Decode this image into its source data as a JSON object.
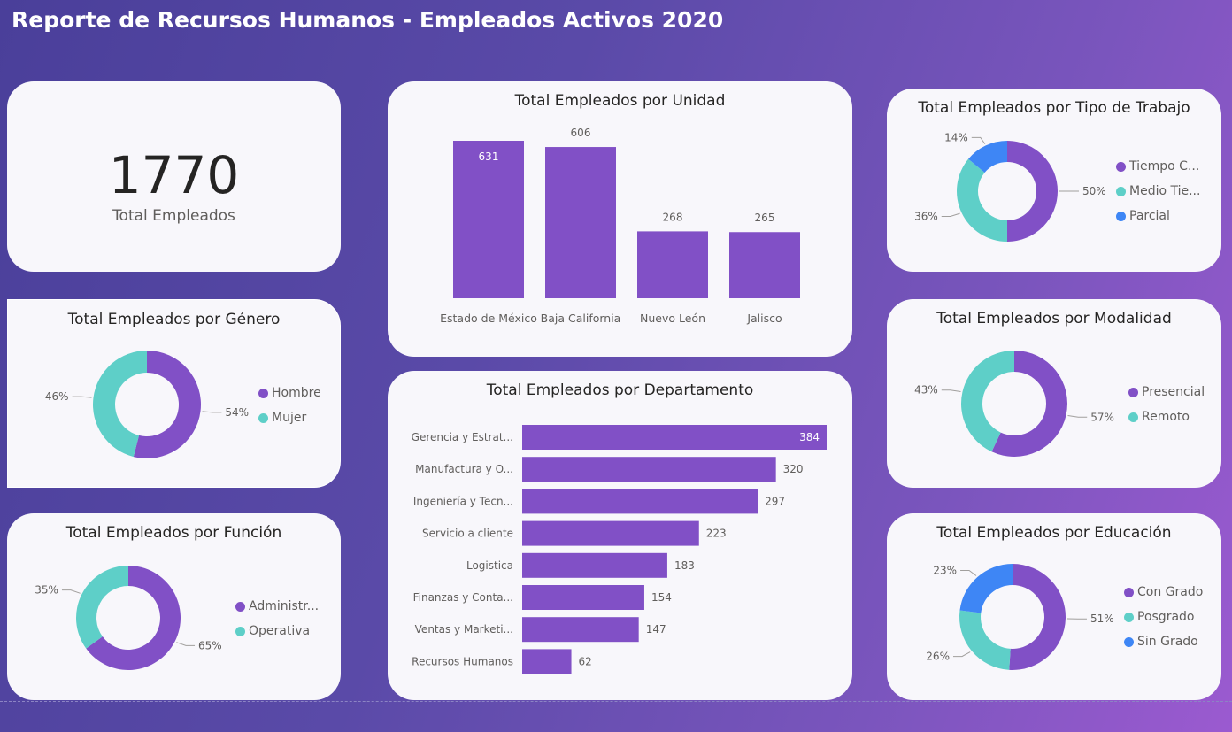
{
  "title": "Reporte de Recursos Humanos - Empleados Activos 2020",
  "colors": {
    "purple": "#8150c6",
    "teal": "#5ecfc8",
    "blue": "#3e86f5"
  },
  "kpi": {
    "value": "1770",
    "label": "Total Empleados"
  },
  "charts": {
    "unidad": {
      "title": "Total Empleados por Unidad"
    },
    "departamento": {
      "title": "Total Empleados por Departamento"
    },
    "genero": {
      "title": "Total Empleados por Género",
      "legend": [
        "Hombre",
        "Mujer"
      ]
    },
    "funcion": {
      "title": "Total Empleados por Función",
      "legend": [
        "Administr...",
        "Operativa"
      ]
    },
    "tipo": {
      "title": "Total Empleados por Tipo de Trabajo",
      "legend": [
        "Tiempo C...",
        "Medio Tie...",
        "Parcial"
      ]
    },
    "modalidad": {
      "title": "Total Empleados por Modalidad",
      "legend": [
        "Presencial",
        "Remoto"
      ]
    },
    "educacion": {
      "title": "Total Empleados por Educación",
      "legend": [
        "Con Grado",
        "Posgrado",
        "Sin Grado"
      ]
    }
  },
  "chart_data": [
    {
      "id": "unidad",
      "type": "bar",
      "title": "Total Empleados por Unidad",
      "categories": [
        "Estado de México",
        "Baja California",
        "Nuevo León",
        "Jalisco"
      ],
      "values": [
        631,
        606,
        268,
        265
      ]
    },
    {
      "id": "departamento",
      "type": "bar",
      "orientation": "horizontal",
      "title": "Total Empleados por Departamento",
      "categories": [
        "Gerencia y Estrat...",
        "Manufactura y O...",
        "Ingeniería y Tecn...",
        "Servicio a cliente",
        "Logistica",
        "Finanzas y Conta...",
        "Ventas y Marketi...",
        "Recursos Humanos"
      ],
      "values": [
        384,
        320,
        297,
        223,
        183,
        154,
        147,
        62
      ]
    },
    {
      "id": "genero",
      "type": "pie",
      "donut": true,
      "title": "Total Empleados por Género",
      "categories": [
        "Hombre",
        "Mujer"
      ],
      "values": [
        54,
        46
      ],
      "labels": [
        "54%",
        "46%"
      ]
    },
    {
      "id": "funcion",
      "type": "pie",
      "donut": true,
      "title": "Total Empleados por Función",
      "categories": [
        "Administr...",
        "Operativa"
      ],
      "values": [
        65,
        35
      ],
      "labels": [
        "65%",
        "35%"
      ]
    },
    {
      "id": "tipo",
      "type": "pie",
      "donut": true,
      "title": "Total Empleados por Tipo de Trabajo",
      "categories": [
        "Tiempo C...",
        "Medio Tie...",
        "Parcial"
      ],
      "values": [
        50,
        36,
        14
      ],
      "labels": [
        "50%",
        "36%",
        "14%"
      ]
    },
    {
      "id": "modalidad",
      "type": "pie",
      "donut": true,
      "title": "Total Empleados por Modalidad",
      "categories": [
        "Presencial",
        "Remoto"
      ],
      "values": [
        57,
        43
      ],
      "labels": [
        "57%",
        "43%"
      ]
    },
    {
      "id": "educacion",
      "type": "pie",
      "donut": true,
      "title": "Total Empleados por Educación",
      "categories": [
        "Con Grado",
        "Posgrado",
        "Sin Grado"
      ],
      "values": [
        51,
        26,
        23
      ],
      "labels": [
        "51%",
        "26%",
        "23%"
      ]
    }
  ]
}
